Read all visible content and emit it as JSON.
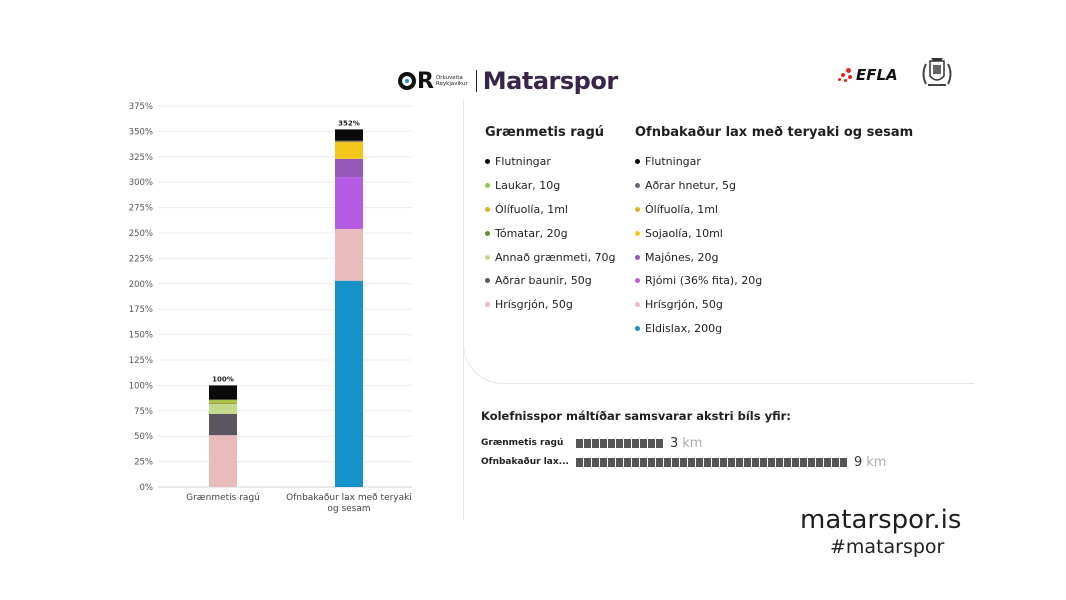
{
  "header": {
    "logo_mark": "OR",
    "logo_sub_1": "Orkuveita",
    "logo_sub_2": "Reykjavíkur",
    "title": "Matarspor",
    "partner_logo": "EFLA",
    "crest_icon": "crest-icon"
  },
  "chart_data": {
    "type": "bar",
    "stacked": true,
    "categories": [
      "Grænmetis ragú",
      "Ofnbakaður lax með teryaki og sesam"
    ],
    "ylim": [
      0,
      375
    ],
    "y_ticks": [
      "0%",
      "25%",
      "50%",
      "75%",
      "100%",
      "125%",
      "150%",
      "175%",
      "200%",
      "225%",
      "250%",
      "275%",
      "300%",
      "325%",
      "350%",
      "375%"
    ],
    "grid": true,
    "totals": [
      "100%",
      "352%"
    ],
    "series": [
      {
        "name": "Grænmetis ragú",
        "components": [
          {
            "name": "Hrísgrjón, 50g",
            "value": 51,
            "color": "#e8bcbd"
          },
          {
            "name": "Aðrar baunir, 50g",
            "value": 21,
            "color": "#5b5562"
          },
          {
            "name": "Annað grænmeti, 70g",
            "value": 10,
            "color": "#c3d98b"
          },
          {
            "name": "Tómatar, 20g",
            "value": 1,
            "color": "#6c8e2a"
          },
          {
            "name": "Ólífuolía, 1ml",
            "value": 1,
            "color": "#d6b420"
          },
          {
            "name": "Laukar, 10g",
            "value": 2,
            "color": "#9ac24a"
          },
          {
            "name": "Flutningar",
            "value": 14,
            "color": "#0a0a0a"
          }
        ]
      },
      {
        "name": "Ofnbakaður lax með teryaki og sesam",
        "components": [
          {
            "name": "Eldislax, 200g",
            "value": 203,
            "color": "#1592c8"
          },
          {
            "name": "Hrísgrjón, 50g",
            "value": 51,
            "color": "#e8bcbd"
          },
          {
            "name": "Rjómi (36% fita), 20g",
            "value": 51,
            "color": "#b45ce3"
          },
          {
            "name": "Majónes, 20g",
            "value": 18,
            "color": "#9358b8"
          },
          {
            "name": "Sojaolía, 10ml",
            "value": 16,
            "color": "#f3c81d"
          },
          {
            "name": "Ólífuolía, 1ml",
            "value": 1,
            "color": "#d6b420"
          },
          {
            "name": "Aðrar hnetur, 5g",
            "value": 1,
            "color": "#6b6274"
          },
          {
            "name": "Flutningar",
            "value": 11,
            "color": "#0a0a0a"
          }
        ]
      }
    ]
  },
  "legend": {
    "left": {
      "title": "Grænmetis ragú",
      "items": [
        {
          "label": "Flutningar",
          "color": "#0a0a0a"
        },
        {
          "label": "Laukar, 10g",
          "color": "#9ac24a"
        },
        {
          "label": "Ólífuolía, 1ml",
          "color": "#d6b420"
        },
        {
          "label": "Tómatar, 20g",
          "color": "#6c8e2a"
        },
        {
          "label": "Annað grænmeti, 70g",
          "color": "#c3d98b"
        },
        {
          "label": "Aðrar baunir, 50g",
          "color": "#5b5562"
        },
        {
          "label": "Hrísgrjón, 50g",
          "color": "#e8bcbd"
        }
      ]
    },
    "right": {
      "title": "Ofnbakaður lax með teryaki og sesam",
      "items": [
        {
          "label": "Flutningar",
          "color": "#0a0a0a"
        },
        {
          "label": "Aðrar hnetur, 5g",
          "color": "#6b6274"
        },
        {
          "label": "Ólífuolía, 1ml",
          "color": "#d6b420"
        },
        {
          "label": "Sojaolía, 10ml",
          "color": "#f3c81d"
        },
        {
          "label": "Majónes, 20g",
          "color": "#9358b8"
        },
        {
          "label": "Rjómi (36% fita), 20g",
          "color": "#b45ce3"
        },
        {
          "label": "Hrísgrjón, 50g",
          "color": "#e8bcbd"
        },
        {
          "label": "Eldislax, 200g",
          "color": "#1592c8"
        }
      ]
    }
  },
  "km": {
    "title": "Kolefnisspor máltíðar samsvarar akstri bíls yfir:",
    "rows": [
      {
        "label": "Grænmetis ragú",
        "km": 3,
        "value_text": "3",
        "unit": "km"
      },
      {
        "label": "Ofnbakaður lax...",
        "km": 9,
        "value_text": "9",
        "unit": "km"
      }
    ]
  },
  "footer": {
    "url": "matarspor.is",
    "hashtag": "#matarspor"
  }
}
